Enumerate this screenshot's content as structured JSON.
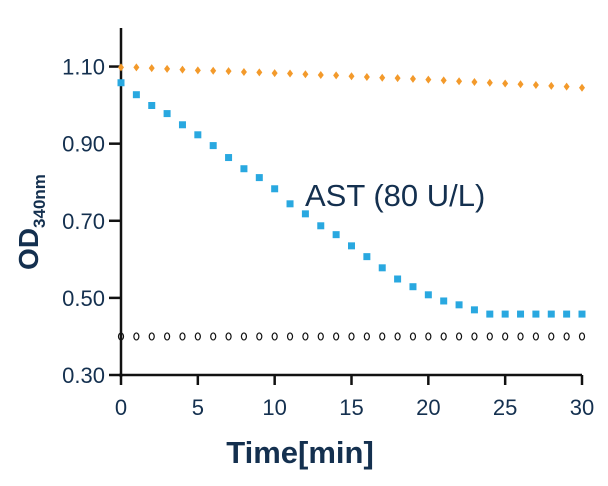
{
  "chart_data": {
    "type": "scatter",
    "xlabel": "Time[min]",
    "ylabel": "OD",
    "ylabel_sub": "340nm",
    "xlim": [
      0,
      30
    ],
    "ylim": [
      0.3,
      1.2
    ],
    "xticks": [
      "0",
      "5",
      "10",
      "15",
      "20",
      "25",
      "30"
    ],
    "yticks": [
      "0.30",
      "0.50",
      "0.70",
      "0.90",
      "1.10"
    ],
    "grid": false,
    "annotation": "AST (80 U/L)",
    "colors": {
      "blue": "#29a8e0",
      "orange": "#f39a2b",
      "black": "#111111",
      "text": "#14304f"
    },
    "x": [
      0,
      1,
      2,
      3,
      4,
      5,
      6,
      7,
      8,
      9,
      10,
      11,
      12,
      13,
      14,
      15,
      16,
      17,
      18,
      19,
      20,
      21,
      22,
      23,
      24,
      25,
      26,
      27,
      28,
      29,
      30
    ],
    "series": [
      {
        "color": "#f39a2b",
        "marker": "filled-diamond",
        "values": [
          1.098,
          1.098,
          1.096,
          1.094,
          1.092,
          1.09,
          1.089,
          1.088,
          1.086,
          1.085,
          1.083,
          1.082,
          1.08,
          1.078,
          1.077,
          1.075,
          1.073,
          1.071,
          1.07,
          1.068,
          1.066,
          1.064,
          1.062,
          1.06,
          1.058,
          1.056,
          1.054,
          1.052,
          1.05,
          1.048,
          1.045
        ]
      },
      {
        "color": "#29a8e0",
        "marker": "filled-square",
        "values": [
          1.058,
          1.027,
          0.999,
          0.978,
          0.949,
          0.923,
          0.895,
          0.864,
          0.835,
          0.812,
          0.783,
          0.744,
          0.718,
          0.687,
          0.664,
          0.635,
          0.607,
          0.578,
          0.549,
          0.529,
          0.508,
          0.492,
          0.482,
          0.469,
          0.458,
          0.458,
          0.458,
          0.458,
          0.458,
          0.458,
          0.458
        ]
      },
      {
        "color": "#111111",
        "marker": "hollow",
        "values": [
          0.4,
          0.4,
          0.4,
          0.4,
          0.4,
          0.4,
          0.4,
          0.4,
          0.4,
          0.4,
          0.4,
          0.4,
          0.4,
          0.4,
          0.4,
          0.4,
          0.4,
          0.4,
          0.4,
          0.4,
          0.4,
          0.4,
          0.4,
          0.4,
          0.4,
          0.4,
          0.4,
          0.4,
          0.4,
          0.4,
          0.4
        ]
      }
    ]
  }
}
